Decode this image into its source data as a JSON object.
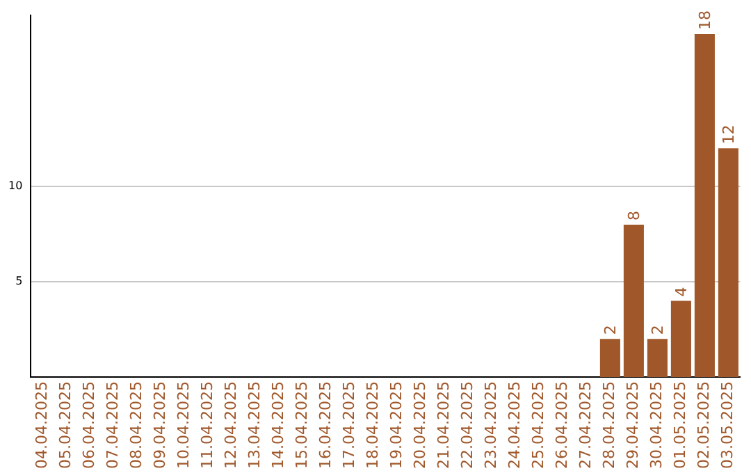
{
  "chart_data": {
    "type": "bar",
    "categories": [
      "04.04.2025",
      "05.04.2025",
      "06.04.2025",
      "07.04.2025",
      "08.04.2025",
      "09.04.2025",
      "10.04.2025",
      "11.04.2025",
      "12.04.2025",
      "13.04.2025",
      "14.04.2025",
      "15.04.2025",
      "16.04.2025",
      "17.04.2025",
      "18.04.2025",
      "19.04.2025",
      "20.04.2025",
      "21.04.2025",
      "22.04.2025",
      "23.04.2025",
      "24.04.2025",
      "25.04.2025",
      "26.04.2025",
      "27.04.2025",
      "28.04.2025",
      "29.04.2025",
      "30.04.2025",
      "01.05.2025",
      "02.05.2025",
      "03.05.2025"
    ],
    "values": [
      0,
      0,
      0,
      0,
      0,
      0,
      0,
      0,
      0,
      0,
      0,
      0,
      0,
      0,
      0,
      0,
      0,
      0,
      0,
      0,
      0,
      0,
      0,
      0,
      2,
      8,
      2,
      4,
      18,
      12
    ],
    "value_labels": [
      null,
      null,
      null,
      null,
      null,
      null,
      null,
      null,
      null,
      null,
      null,
      null,
      null,
      null,
      null,
      null,
      null,
      null,
      null,
      null,
      null,
      null,
      null,
      null,
      "2",
      "8",
      "2",
      "4",
      "18",
      "12"
    ],
    "color": "#a0582b",
    "ylim": [
      0,
      19
    ],
    "yticks": [
      5,
      10
    ],
    "grid": "y",
    "legend": false
  }
}
